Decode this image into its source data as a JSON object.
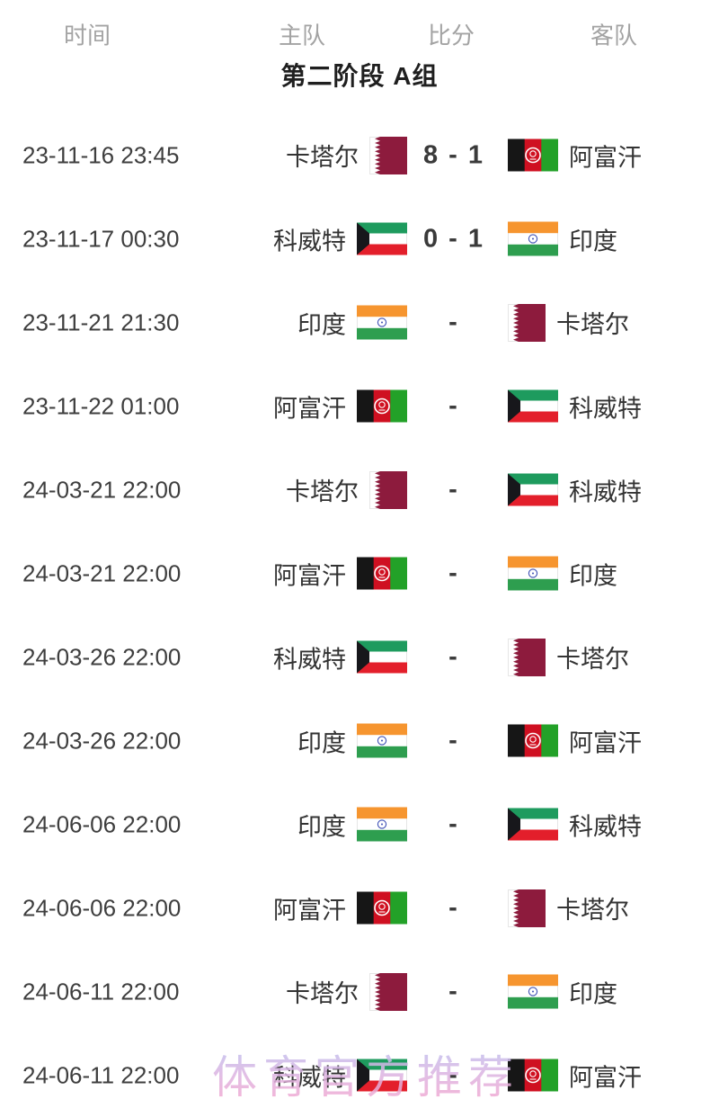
{
  "table": {
    "columns": [
      {
        "key": "time",
        "label": "时间"
      },
      {
        "key": "home",
        "label": "主队"
      },
      {
        "key": "score",
        "label": "比分"
      },
      {
        "key": "away",
        "label": "客队"
      }
    ],
    "group_title": "第二阶段 A组"
  },
  "matches": [
    {
      "time": "23-11-16 23:45",
      "home": "卡塔尔",
      "home_flag": "qatar",
      "score": "8 - 1",
      "away": "阿富汗",
      "away_flag": "afghanistan"
    },
    {
      "time": "23-11-17 00:30",
      "home": "科威特",
      "home_flag": "kuwait",
      "score": "0 - 1",
      "away": "印度",
      "away_flag": "india"
    },
    {
      "time": "23-11-21 21:30",
      "home": "印度",
      "home_flag": "india",
      "score": "-",
      "away": "卡塔尔",
      "away_flag": "qatar"
    },
    {
      "time": "23-11-22 01:00",
      "home": "阿富汗",
      "home_flag": "afghanistan",
      "score": "-",
      "away": "科威特",
      "away_flag": "kuwait"
    },
    {
      "time": "24-03-21 22:00",
      "home": "卡塔尔",
      "home_flag": "qatar",
      "score": "-",
      "away": "科威特",
      "away_flag": "kuwait"
    },
    {
      "time": "24-03-21 22:00",
      "home": "阿富汗",
      "home_flag": "afghanistan",
      "score": "-",
      "away": "印度",
      "away_flag": "india"
    },
    {
      "time": "24-03-26 22:00",
      "home": "科威特",
      "home_flag": "kuwait",
      "score": "-",
      "away": "卡塔尔",
      "away_flag": "qatar"
    },
    {
      "time": "24-03-26 22:00",
      "home": "印度",
      "home_flag": "india",
      "score": "-",
      "away": "阿富汗",
      "away_flag": "afghanistan"
    },
    {
      "time": "24-06-06 22:00",
      "home": "印度",
      "home_flag": "india",
      "score": "-",
      "away": "科威特",
      "away_flag": "kuwait"
    },
    {
      "time": "24-06-06 22:00",
      "home": "阿富汗",
      "home_flag": "afghanistan",
      "score": "-",
      "away": "卡塔尔",
      "away_flag": "qatar"
    },
    {
      "time": "24-06-11 22:00",
      "home": "卡塔尔",
      "home_flag": "qatar",
      "score": "-",
      "away": "印度",
      "away_flag": "india"
    },
    {
      "time": "24-06-11 22:00",
      "home": "科威特",
      "home_flag": "kuwait",
      "score": "-",
      "away": "阿富汗",
      "away_flag": "afghanistan"
    }
  ],
  "watermark": {
    "text": "体育官方推荐"
  },
  "flags": {
    "qatar": {
      "white": "#ffffff",
      "maroon": "#8d1b3d"
    },
    "afghanistan": {
      "black": "#161616",
      "red": "#cf1021",
      "green": "#23a128",
      "emblem": "#ffffff"
    },
    "kuwait": {
      "green": "#1e9b5e",
      "white": "#ffffff",
      "red": "#e31f2b",
      "black": "#17171b"
    },
    "india": {
      "saffron": "#f6952f",
      "white": "#ffffff",
      "green": "#2e9e4f",
      "navy": "#3f51b5"
    }
  },
  "colors": {
    "background": "#ffffff",
    "header_text": "#a3a3a3",
    "title_text": "#1f1f1f",
    "body_text": "#3e3e3e",
    "team_text": "#333333",
    "score_text": "#3a3a3a",
    "watermark_top": "#bcc2f0",
    "watermark_bottom": "#f2a9d2"
  }
}
